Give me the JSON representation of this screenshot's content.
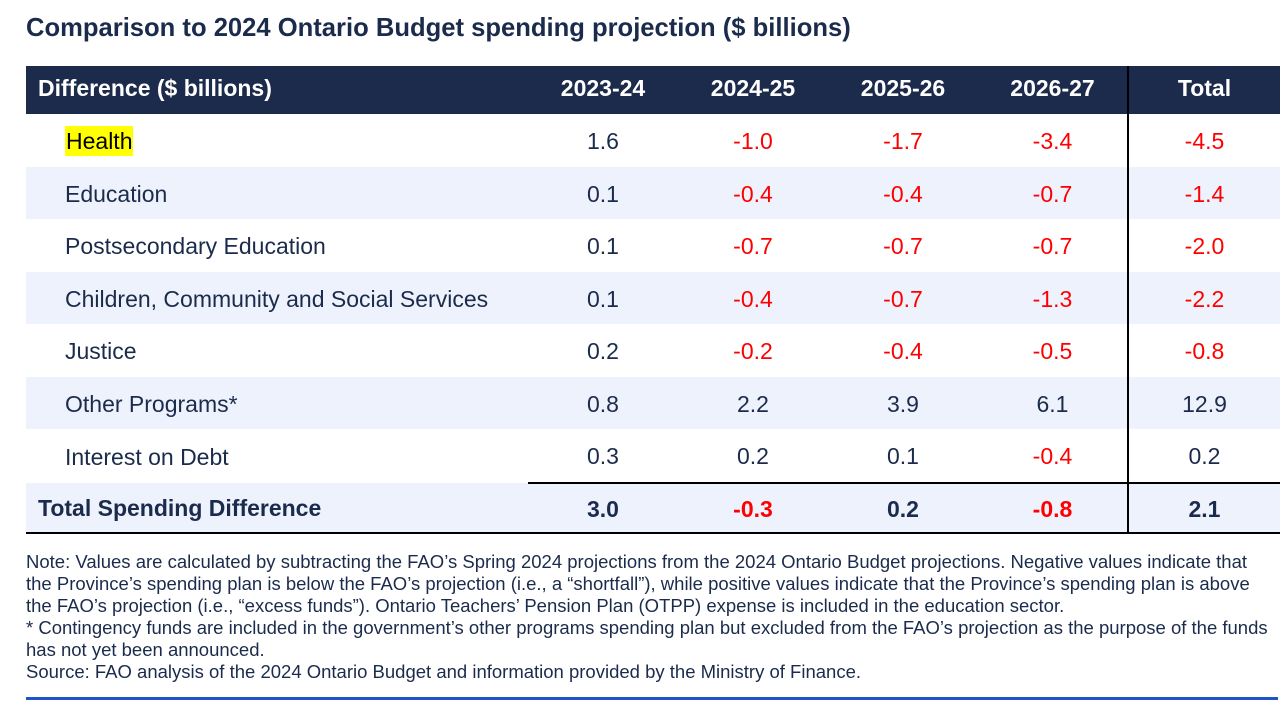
{
  "title": "Comparison to 2024 Ontario Budget spending projection ($ billions)",
  "table": {
    "columns": [
      "Difference ($ billions)",
      "2023-24",
      "2024-25",
      "2025-26",
      "2026-27",
      "Total"
    ],
    "rows": [
      {
        "label": "Health",
        "highlighted": true,
        "values": [
          "1.6",
          "-1.0",
          "-1.7",
          "-3.4",
          "-4.5"
        ]
      },
      {
        "label": "Education",
        "highlighted": false,
        "values": [
          "0.1",
          "-0.4",
          "-0.4",
          "-0.7",
          "-1.4"
        ]
      },
      {
        "label": "Postsecondary Education",
        "highlighted": false,
        "values": [
          "0.1",
          "-0.7",
          "-0.7",
          "-0.7",
          "-2.0"
        ]
      },
      {
        "label": "Children, Community and Social Services",
        "highlighted": false,
        "values": [
          "0.1",
          "-0.4",
          "-0.7",
          "-1.3",
          "-2.2"
        ]
      },
      {
        "label": "Justice",
        "highlighted": false,
        "values": [
          "0.2",
          "-0.2",
          "-0.4",
          "-0.5",
          "-0.8"
        ]
      },
      {
        "label": "Other Programs*",
        "highlighted": false,
        "values": [
          "0.8",
          "2.2",
          "3.9",
          "6.1",
          "12.9"
        ]
      },
      {
        "label": "Interest on Debt",
        "highlighted": false,
        "values": [
          "0.3",
          "0.2",
          "0.1",
          "-0.4",
          "0.2"
        ]
      }
    ],
    "total_row": {
      "label": "Total Spending Difference",
      "values": [
        "3.0",
        "-0.3",
        "0.2",
        "-0.8",
        "2.1"
      ]
    }
  },
  "notes": {
    "note": "Note: Values are calculated by subtracting the FAO’s Spring 2024 projections from the 2024 Ontario Budget projections. Negative values indicate that the Province’s spending plan is below the FAO’s projection (i.e., a “shortfall”), while positive values indicate that the Province’s spending plan is above the FAO’s projection (i.e., “excess funds”). Ontario Teachers’ Pension Plan (OTPP) expense is included in the education sector.",
    "footnote": "* Contingency funds are included in the government’s other programs spending plan but excluded from the FAO’s projection as the purpose of the funds has not yet been announced.",
    "source": "Source: FAO analysis of the 2024 Ontario Budget and information provided by the Ministry of Finance."
  },
  "colors": {
    "header_bg": "#1c2b4b",
    "text_navy": "#1b2b4c",
    "negative_red": "#ff0000",
    "stripe_blue": "#eef2fc",
    "highlight_yellow": "#ffff00",
    "rule_black": "#000000",
    "rule_blue": "#1b55c8"
  }
}
